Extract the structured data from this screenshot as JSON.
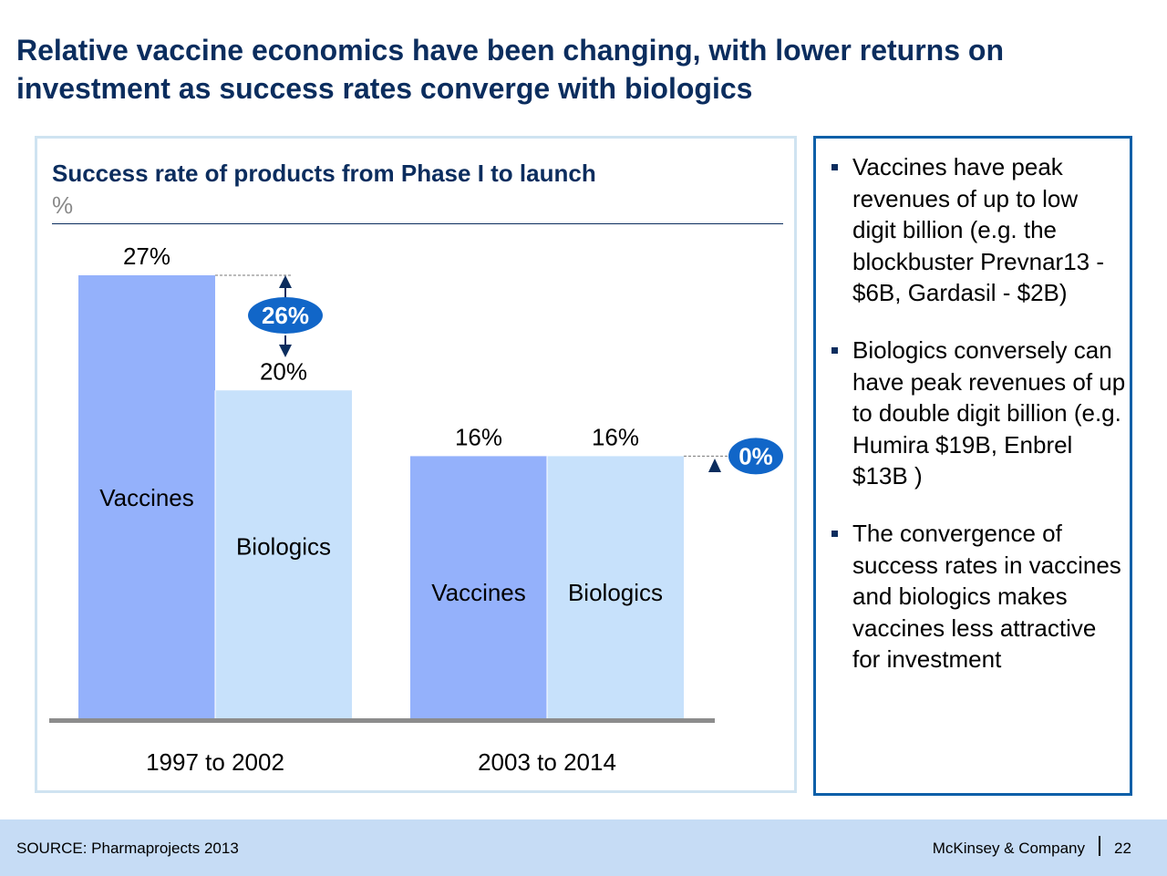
{
  "slide": {
    "title": "Relative vaccine economics have been changing, with lower returns on investment as success rates converge with biologics"
  },
  "colors": {
    "title": "#0b2d5e",
    "vaccines": "#94b1fb",
    "biologics": "#c7e1fb",
    "baseline": "#8c8c8c",
    "badge": "#1166c8"
  },
  "chart_data": {
    "type": "bar",
    "title": "Success rate of products from Phase I to launch",
    "unit": "%",
    "categories": [
      "1997 to 2002",
      "2003 to 2014"
    ],
    "series": [
      {
        "name": "Vaccines",
        "values": [
          27,
          16
        ],
        "labels": [
          "27%",
          "16%"
        ]
      },
      {
        "name": "Biologics",
        "values": [
          20,
          16
        ],
        "labels": [
          "20%",
          "16%"
        ]
      }
    ],
    "ylim": [
      0,
      27
    ],
    "grid": false,
    "legend": "in-bar labels",
    "annotations": [
      {
        "label": "26%",
        "category": "1997 to 2002",
        "from_series": "Vaccines",
        "to_series": "Biologics"
      },
      {
        "label": "0%",
        "category": "2003 to 2014",
        "from_series": "Vaccines",
        "to_series": "Biologics"
      }
    ]
  },
  "bullets": [
    "Vaccines have peak revenues of up to low digit billion (e.g. the blockbuster Prevnar13 - $6B, Gardasil - $2B)",
    "Biologics conversely can have peak revenues of up to double digit billion (e.g. Humira $19B, Enbrel $13B )",
    "The convergence of success rates in vaccines and biologics makes vaccines less attractive for investment"
  ],
  "footer": {
    "source": "SOURCE: Pharmaprojects 2013",
    "brand": "McKinsey & Company",
    "page": "22"
  }
}
